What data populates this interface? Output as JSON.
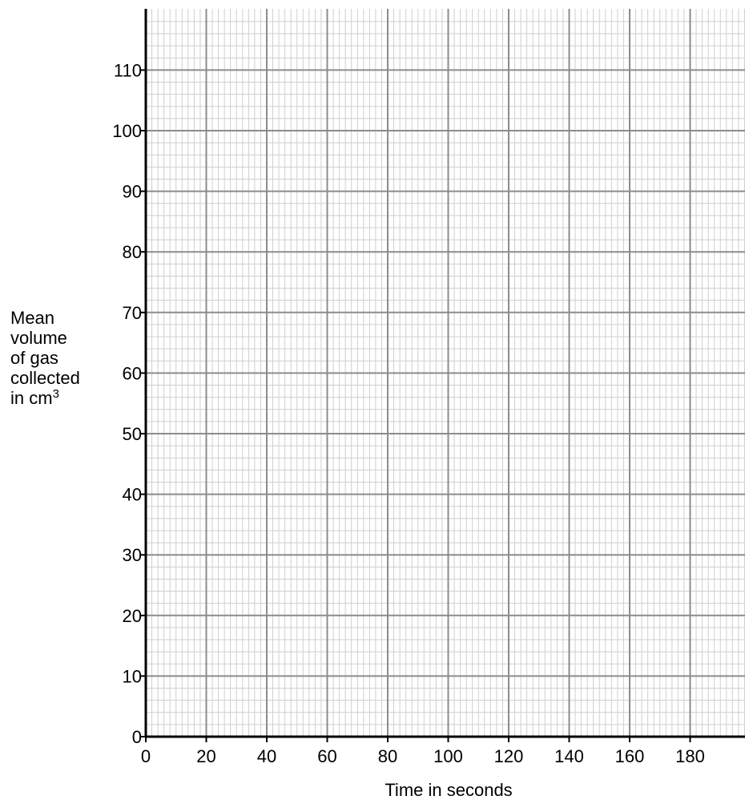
{
  "chart_data": {
    "type": "line",
    "title": "",
    "xlabel": "Time in seconds",
    "ylabel_lines": [
      "Mean",
      "volume",
      "of gas",
      "collected",
      "in cm"
    ],
    "ylabel_superscript": "3",
    "xlim": [
      0,
      198
    ],
    "ylim": [
      0,
      119
    ],
    "x_major_step": 20,
    "y_major_step": 10,
    "x_minor_step": 2,
    "y_minor_step": 2,
    "x_ticks": [
      0,
      20,
      40,
      60,
      80,
      100,
      120,
      140,
      160,
      180
    ],
    "y_ticks": [
      0,
      10,
      20,
      30,
      40,
      50,
      60,
      70,
      80,
      90,
      100,
      110
    ],
    "grid": true,
    "series": []
  },
  "colors": {
    "axis": "#000000",
    "major_grid": "#8c8c8c",
    "minor_grid": "#cfcfcf"
  }
}
